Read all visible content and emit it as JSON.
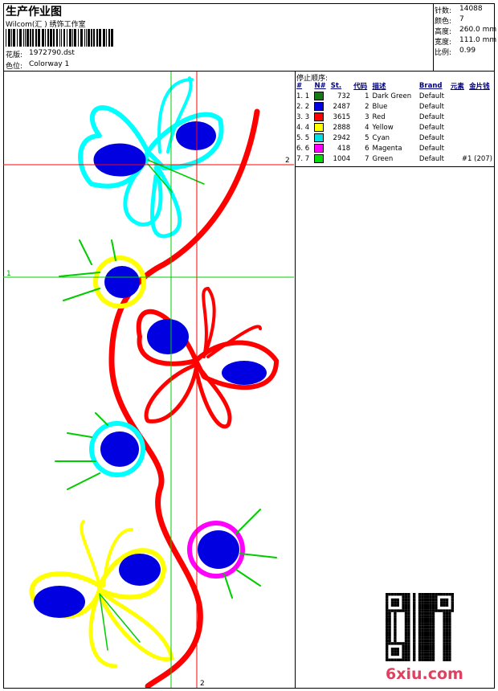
{
  "header": {
    "title": "生产作业图",
    "company": "Wilcom(汇 )  绣饰工作室",
    "file_label": "花版:",
    "file_value": "1972790.dst",
    "colorway_label": "色位:",
    "colorway_value": "Colorway 1"
  },
  "stats": [
    {
      "label": "针数:",
      "value": "14088"
    },
    {
      "label": "颜色:",
      "value": "7"
    },
    {
      "label": "高度:",
      "value": "260.0 mm"
    },
    {
      "label": "宽度:",
      "value": "111.0 mm"
    },
    {
      "label": "比例:",
      "value": "0.99"
    }
  ],
  "stop_table": {
    "title": "停止顺序:",
    "columns": [
      "#",
      "N#",
      "St.",
      "代码",
      "描述",
      "Brand",
      "元素",
      "金片钱"
    ],
    "rows": [
      {
        "index": "1. 1",
        "color": "#157a15",
        "stitches": "732",
        "code": "1",
        "description": "Dark Green",
        "brand": "Default"
      },
      {
        "index": "2. 2",
        "color": "#0000e0",
        "stitches": "2487",
        "code": "2",
        "description": "Blue",
        "brand": "Default"
      },
      {
        "index": "3. 3",
        "color": "#ff0000",
        "stitches": "3615",
        "code": "3",
        "description": "Red",
        "brand": "Default"
      },
      {
        "index": "4. 4",
        "color": "#ffff00",
        "stitches": "2888",
        "code": "4",
        "description": "Yellow",
        "brand": "Default"
      },
      {
        "index": "5. 5",
        "color": "#00e0e0",
        "stitches": "2942",
        "code": "5",
        "description": "Cyan",
        "brand": "Default"
      },
      {
        "index": "6. 6",
        "color": "#ff00ff",
        "stitches": "418",
        "code": "6",
        "description": "Magenta",
        "brand": "Default"
      },
      {
        "index": "7. 7",
        "color": "#00dd00",
        "stitches": "1004",
        "code": "7",
        "description": "Green",
        "brand": "Default",
        "note": "#1 (207)"
      }
    ]
  },
  "guides": {
    "red_h": "2",
    "green_h": "1",
    "red_v": "2"
  },
  "watermark": "6xiu.com"
}
